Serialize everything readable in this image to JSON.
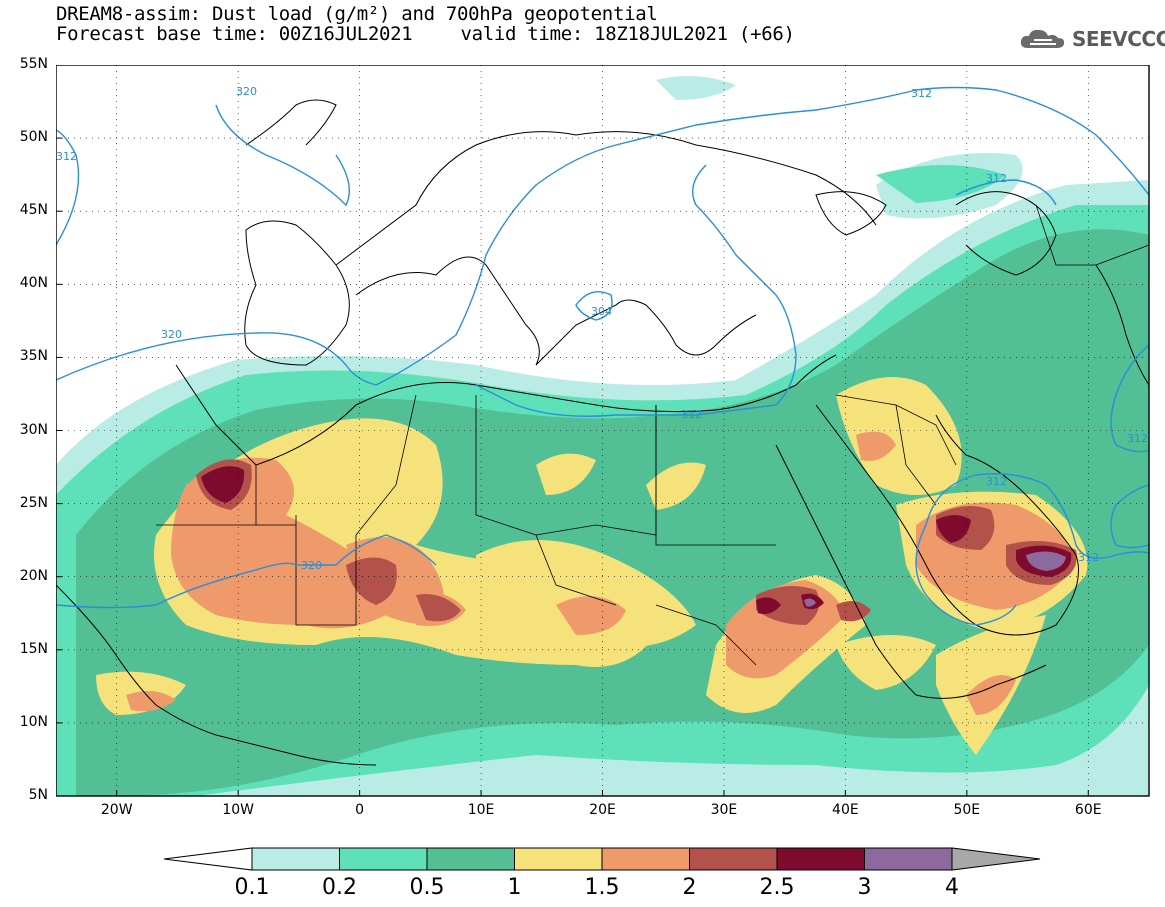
{
  "title": {
    "line1": "DREAM8-assim: Dust load (g/m²) and 700hPa geopotential",
    "line2_left": "Forecast base time: 00Z16JUL2021",
    "line2_right": "valid time: 18Z18JUL2021 (+66)"
  },
  "logo": {
    "text": "SEEVCCC",
    "icon": "cloud-icon"
  },
  "axes": {
    "lat_labels": [
      "55N",
      "50N",
      "45N",
      "40N",
      "35N",
      "30N",
      "25N",
      "20N",
      "15N",
      "10N",
      "5N"
    ],
    "lon_labels": [
      "20W",
      "10W",
      "0",
      "10E",
      "20E",
      "30E",
      "40E",
      "50E",
      "60E"
    ],
    "lon_range": [
      -25,
      65
    ],
    "lat_range": [
      5,
      55
    ]
  },
  "contours": {
    "labels": [
      "320",
      "312",
      "312",
      "304",
      "320",
      "312",
      "312",
      "320",
      "312",
      "312",
      "312"
    ]
  },
  "colorbar": {
    "colors": [
      "#ffffff",
      "#b9ece4",
      "#5ee0b8",
      "#52bf95",
      "#f6e27a",
      "#ee9a6b",
      "#b3514b",
      "#7e0b2d",
      "#8c6a9e",
      "#a8a8a8"
    ],
    "tick_labels": [
      "0.1",
      "0.2",
      "0.5",
      "1",
      "1.5",
      "2",
      "2.5",
      "3",
      "4"
    ]
  }
}
